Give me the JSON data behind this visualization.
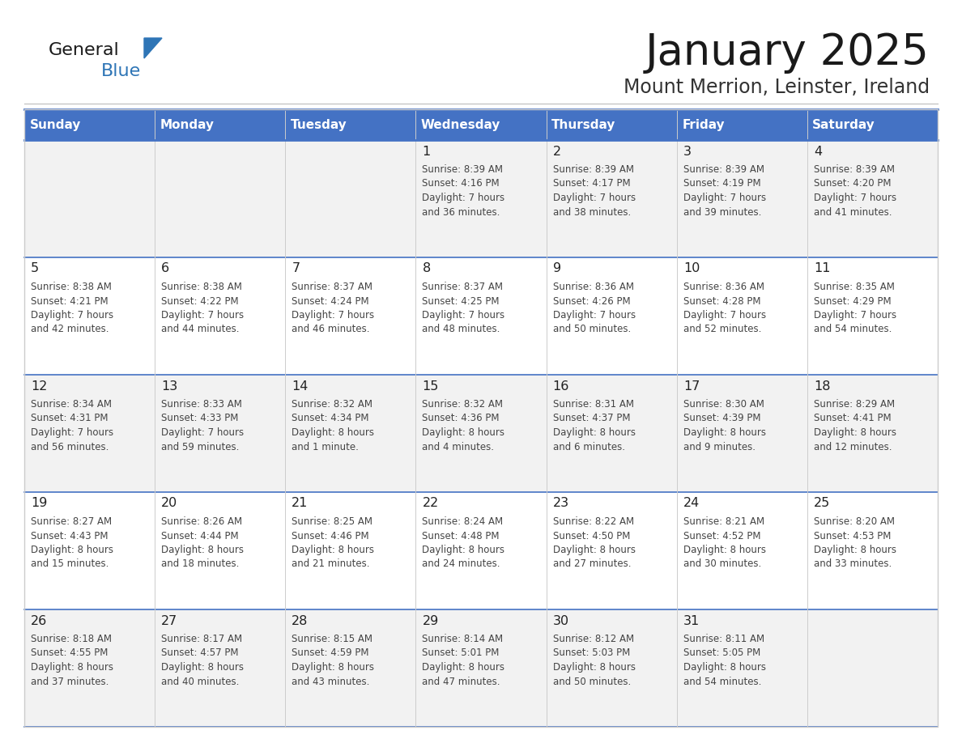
{
  "title": "January 2025",
  "subtitle": "Mount Merrion, Leinster, Ireland",
  "days_of_week": [
    "Sunday",
    "Monday",
    "Tuesday",
    "Wednesday",
    "Thursday",
    "Friday",
    "Saturday"
  ],
  "header_bg": "#4472C4",
  "header_text": "#FFFFFF",
  "row_bg_odd": "#F2F2F2",
  "row_bg_even": "#FFFFFF",
  "row_border_color": "#4472C4",
  "col_border_color": "#CCCCCC",
  "title_color": "#1a1a1a",
  "subtitle_color": "#333333",
  "day_num_color": "#222222",
  "info_color": "#444444",
  "logo_general_color": "#1a1a1a",
  "logo_blue_color": "#2E75B6",
  "logo_triangle_color": "#2E75B6",
  "calendar": [
    [
      {
        "day": "",
        "info": ""
      },
      {
        "day": "",
        "info": ""
      },
      {
        "day": "",
        "info": ""
      },
      {
        "day": "1",
        "info": "Sunrise: 8:39 AM\nSunset: 4:16 PM\nDaylight: 7 hours\nand 36 minutes."
      },
      {
        "day": "2",
        "info": "Sunrise: 8:39 AM\nSunset: 4:17 PM\nDaylight: 7 hours\nand 38 minutes."
      },
      {
        "day": "3",
        "info": "Sunrise: 8:39 AM\nSunset: 4:19 PM\nDaylight: 7 hours\nand 39 minutes."
      },
      {
        "day": "4",
        "info": "Sunrise: 8:39 AM\nSunset: 4:20 PM\nDaylight: 7 hours\nand 41 minutes."
      }
    ],
    [
      {
        "day": "5",
        "info": "Sunrise: 8:38 AM\nSunset: 4:21 PM\nDaylight: 7 hours\nand 42 minutes."
      },
      {
        "day": "6",
        "info": "Sunrise: 8:38 AM\nSunset: 4:22 PM\nDaylight: 7 hours\nand 44 minutes."
      },
      {
        "day": "7",
        "info": "Sunrise: 8:37 AM\nSunset: 4:24 PM\nDaylight: 7 hours\nand 46 minutes."
      },
      {
        "day": "8",
        "info": "Sunrise: 8:37 AM\nSunset: 4:25 PM\nDaylight: 7 hours\nand 48 minutes."
      },
      {
        "day": "9",
        "info": "Sunrise: 8:36 AM\nSunset: 4:26 PM\nDaylight: 7 hours\nand 50 minutes."
      },
      {
        "day": "10",
        "info": "Sunrise: 8:36 AM\nSunset: 4:28 PM\nDaylight: 7 hours\nand 52 minutes."
      },
      {
        "day": "11",
        "info": "Sunrise: 8:35 AM\nSunset: 4:29 PM\nDaylight: 7 hours\nand 54 minutes."
      }
    ],
    [
      {
        "day": "12",
        "info": "Sunrise: 8:34 AM\nSunset: 4:31 PM\nDaylight: 7 hours\nand 56 minutes."
      },
      {
        "day": "13",
        "info": "Sunrise: 8:33 AM\nSunset: 4:33 PM\nDaylight: 7 hours\nand 59 minutes."
      },
      {
        "day": "14",
        "info": "Sunrise: 8:32 AM\nSunset: 4:34 PM\nDaylight: 8 hours\nand 1 minute."
      },
      {
        "day": "15",
        "info": "Sunrise: 8:32 AM\nSunset: 4:36 PM\nDaylight: 8 hours\nand 4 minutes."
      },
      {
        "day": "16",
        "info": "Sunrise: 8:31 AM\nSunset: 4:37 PM\nDaylight: 8 hours\nand 6 minutes."
      },
      {
        "day": "17",
        "info": "Sunrise: 8:30 AM\nSunset: 4:39 PM\nDaylight: 8 hours\nand 9 minutes."
      },
      {
        "day": "18",
        "info": "Sunrise: 8:29 AM\nSunset: 4:41 PM\nDaylight: 8 hours\nand 12 minutes."
      }
    ],
    [
      {
        "day": "19",
        "info": "Sunrise: 8:27 AM\nSunset: 4:43 PM\nDaylight: 8 hours\nand 15 minutes."
      },
      {
        "day": "20",
        "info": "Sunrise: 8:26 AM\nSunset: 4:44 PM\nDaylight: 8 hours\nand 18 minutes."
      },
      {
        "day": "21",
        "info": "Sunrise: 8:25 AM\nSunset: 4:46 PM\nDaylight: 8 hours\nand 21 minutes."
      },
      {
        "day": "22",
        "info": "Sunrise: 8:24 AM\nSunset: 4:48 PM\nDaylight: 8 hours\nand 24 minutes."
      },
      {
        "day": "23",
        "info": "Sunrise: 8:22 AM\nSunset: 4:50 PM\nDaylight: 8 hours\nand 27 minutes."
      },
      {
        "day": "24",
        "info": "Sunrise: 8:21 AM\nSunset: 4:52 PM\nDaylight: 8 hours\nand 30 minutes."
      },
      {
        "day": "25",
        "info": "Sunrise: 8:20 AM\nSunset: 4:53 PM\nDaylight: 8 hours\nand 33 minutes."
      }
    ],
    [
      {
        "day": "26",
        "info": "Sunrise: 8:18 AM\nSunset: 4:55 PM\nDaylight: 8 hours\nand 37 minutes."
      },
      {
        "day": "27",
        "info": "Sunrise: 8:17 AM\nSunset: 4:57 PM\nDaylight: 8 hours\nand 40 minutes."
      },
      {
        "day": "28",
        "info": "Sunrise: 8:15 AM\nSunset: 4:59 PM\nDaylight: 8 hours\nand 43 minutes."
      },
      {
        "day": "29",
        "info": "Sunrise: 8:14 AM\nSunset: 5:01 PM\nDaylight: 8 hours\nand 47 minutes."
      },
      {
        "day": "30",
        "info": "Sunrise: 8:12 AM\nSunset: 5:03 PM\nDaylight: 8 hours\nand 50 minutes."
      },
      {
        "day": "31",
        "info": "Sunrise: 8:11 AM\nSunset: 5:05 PM\nDaylight: 8 hours\nand 54 minutes."
      },
      {
        "day": "",
        "info": ""
      }
    ]
  ]
}
